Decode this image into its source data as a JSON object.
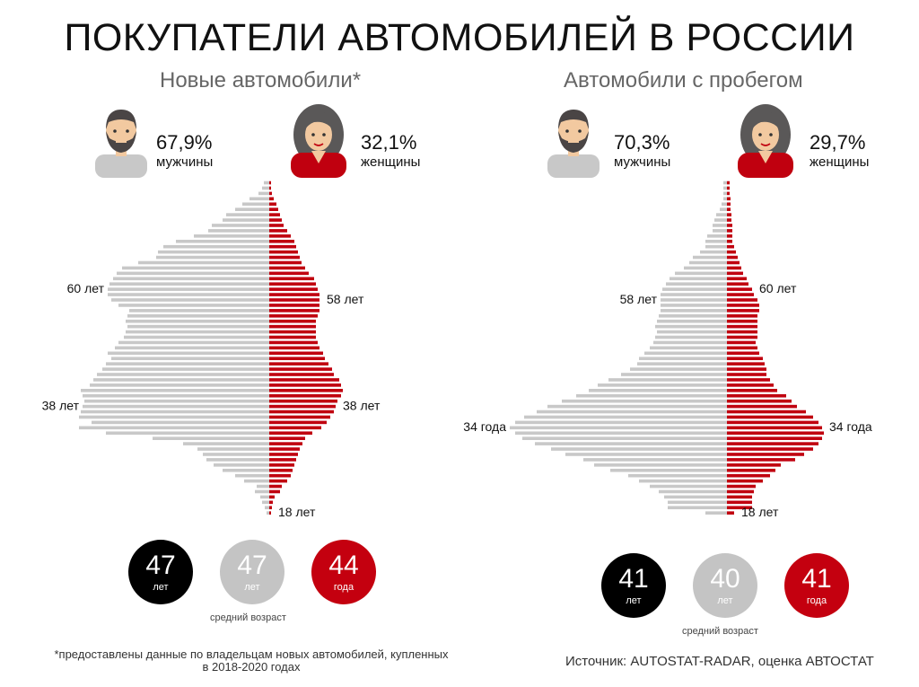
{
  "title": "ПОКУПАТЕЛИ АВТОМОБИЛЕЙ В РОССИИ",
  "colors": {
    "male": "#c8c8c8",
    "female": "#c0000f",
    "black": "#000000"
  },
  "new_cars": {
    "subtitle": "Новые автомобили*",
    "male_pct": "67,9%",
    "male_label": "мужчины",
    "female_pct": "32,1%",
    "female_label": "женщины",
    "avg_label": "средний возраст",
    "averages": [
      {
        "value": "47",
        "unit": "лет",
        "color": "black"
      },
      {
        "value": "47",
        "unit": "лет",
        "color": "grey"
      },
      {
        "value": "44",
        "unit": "года",
        "color": "red"
      }
    ]
  },
  "used_cars": {
    "subtitle": "Автомобили с пробегом",
    "male_pct": "70,3%",
    "male_label": "мужчины",
    "female_pct": "29,7%",
    "female_label": "женщины",
    "avg_label": "средний возраст",
    "averages": [
      {
        "value": "41",
        "unit": "лет",
        "color": "black"
      },
      {
        "value": "40",
        "unit": "лет",
        "color": "grey"
      },
      {
        "value": "41",
        "unit": "года",
        "color": "red"
      }
    ]
  },
  "footnote": "*предоставлены данные по владельцам новых автомобилей, купленных в 2018-2020 годах",
  "source": "Источник: AUTOSTAT-RADAR, оценка АВТОСТАТ",
  "chart_data": [
    {
      "type": "bar",
      "orientation": "horizontal-pyramid",
      "title": "Новые автомобили*",
      "categories": [
        18,
        19,
        20,
        21,
        22,
        23,
        24,
        25,
        26,
        27,
        28,
        29,
        30,
        31,
        32,
        33,
        34,
        35,
        36,
        37,
        38,
        39,
        40,
        41,
        42,
        43,
        44,
        45,
        46,
        47,
        48,
        49,
        50,
        51,
        52,
        53,
        54,
        55,
        56,
        57,
        58,
        59,
        60,
        61,
        62,
        63,
        64,
        65,
        66,
        67,
        68,
        69,
        70,
        71,
        72,
        73,
        74,
        75,
        76,
        77,
        78,
        79,
        80
      ],
      "series": [
        {
          "name": "мужчины",
          "values": [
            3,
            5,
            8,
            10,
            16,
            14,
            28,
            38,
            52,
            62,
            70,
            74,
            80,
            96,
            130,
            182,
            212,
            198,
            212,
            210,
            208,
            206,
            208,
            210,
            200,
            196,
            192,
            186,
            182,
            176,
            180,
            172,
            168,
            162,
            160,
            158,
            160,
            158,
            156,
            168,
            176,
            180,
            180,
            178,
            174,
            170,
            164,
            146,
            126,
            124,
            118,
            104,
            84,
            68,
            64,
            52,
            48,
            38,
            30,
            22,
            12,
            8,
            6
          ]
        },
        {
          "name": "женщины",
          "values": [
            2,
            3,
            4,
            6,
            12,
            14,
            20,
            24,
            26,
            28,
            30,
            32,
            34,
            37,
            40,
            48,
            58,
            64,
            68,
            72,
            74,
            76,
            80,
            82,
            80,
            78,
            72,
            70,
            66,
            62,
            60,
            56,
            54,
            52,
            52,
            52,
            52,
            54,
            56,
            56,
            56,
            56,
            54,
            52,
            50,
            44,
            40,
            36,
            34,
            32,
            30,
            28,
            24,
            20,
            16,
            14,
            12,
            10,
            8,
            5,
            3,
            2,
            2
          ]
        }
      ],
      "annotations": [
        {
          "side": "male",
          "age": 38,
          "text": "38 лет"
        },
        {
          "side": "male",
          "age": 60,
          "text": "60 лет"
        },
        {
          "side": "female",
          "age": 38,
          "text": "38 лет"
        },
        {
          "side": "female",
          "age": 58,
          "text": "58 лет"
        },
        {
          "side": "female",
          "age": 18,
          "text": "18 лет"
        }
      ]
    },
    {
      "type": "bar",
      "orientation": "horizontal-pyramid",
      "title": "Автомобили с пробегом",
      "categories": [
        18,
        19,
        20,
        21,
        22,
        23,
        24,
        25,
        26,
        27,
        28,
        29,
        30,
        31,
        32,
        33,
        34,
        35,
        36,
        37,
        38,
        39,
        40,
        41,
        42,
        43,
        44,
        45,
        46,
        47,
        48,
        49,
        50,
        51,
        52,
        53,
        54,
        55,
        56,
        57,
        58,
        59,
        60,
        61,
        62,
        63,
        64,
        65,
        66,
        67,
        68,
        69,
        70,
        71,
        72,
        73,
        74,
        75,
        76,
        77,
        78,
        79,
        80
      ],
      "series": [
        {
          "name": "мужчины",
          "values": [
            24,
            66,
            66,
            70,
            76,
            86,
            98,
            110,
            130,
            148,
            160,
            180,
            196,
            214,
            228,
            236,
            242,
            236,
            226,
            212,
            200,
            184,
            168,
            154,
            144,
            132,
            118,
            108,
            100,
            98,
            92,
            86,
            82,
            80,
            78,
            80,
            78,
            76,
            74,
            74,
            74,
            74,
            72,
            68,
            64,
            58,
            48,
            42,
            38,
            30,
            24,
            24,
            22,
            16,
            16,
            14,
            12,
            8,
            6,
            4,
            4,
            4,
            4
          ]
        },
        {
          "name": "женщины",
          "values": [
            8,
            28,
            28,
            28,
            30,
            32,
            40,
            48,
            54,
            60,
            76,
            86,
            96,
            102,
            106,
            108,
            106,
            102,
            96,
            88,
            78,
            72,
            66,
            56,
            52,
            48,
            44,
            44,
            42,
            40,
            36,
            34,
            32,
            34,
            34,
            34,
            34,
            34,
            36,
            36,
            34,
            30,
            28,
            24,
            22,
            18,
            16,
            14,
            12,
            10,
            8,
            6,
            6,
            6,
            6,
            5,
            5,
            4,
            4,
            4,
            3,
            3,
            3
          ]
        }
      ],
      "annotations": [
        {
          "side": "male",
          "age": 34,
          "text": "34 года"
        },
        {
          "side": "male",
          "age": 58,
          "text": "58 лет"
        },
        {
          "side": "female",
          "age": 34,
          "text": "34 года"
        },
        {
          "side": "female",
          "age": 60,
          "text": "60 лет"
        },
        {
          "side": "female",
          "age": 18,
          "text": "18 лет"
        }
      ]
    }
  ]
}
